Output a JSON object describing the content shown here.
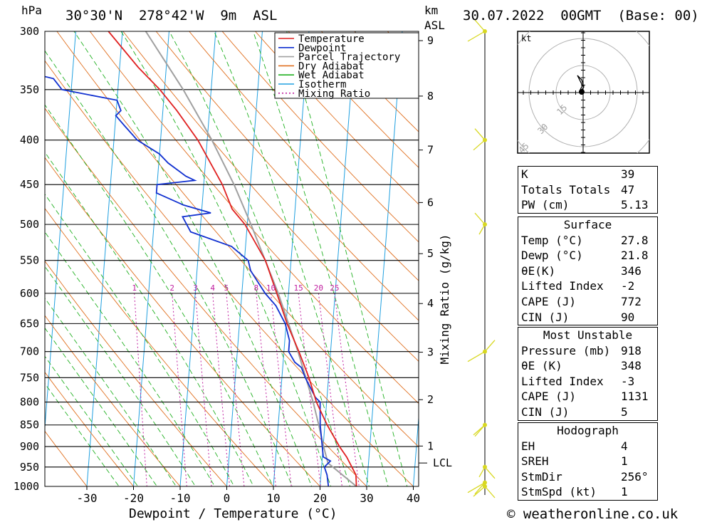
{
  "header": {
    "location": "30°30'N  278°42'W  9m  ASL",
    "datetime": "30.07.2022  00GMT  (Base: 00)",
    "hpa_label": "hPa",
    "km_label": "km",
    "asl_label": "ASL",
    "copyright": "© weatheronline.co.uk"
  },
  "legend": [
    "Temperature",
    "Dewpoint",
    "Parcel Trajectory",
    "Dry Adiabat",
    "Wet Adiabat",
    "Isotherm",
    "Mixing Ratio"
  ],
  "colors": {
    "temperature": "#e02020",
    "dewpoint": "#1030d0",
    "parcel": "#a0a0a0",
    "dry_adiabat": "#e07020",
    "wet_adiabat": "#20b020",
    "isotherm": "#20a0e0",
    "mixing_ratio": "#c020a0",
    "wind": "#d8d820"
  },
  "chart_data": {
    "type": "line",
    "title": "30°30'N  278°42'W  9m  ASL",
    "xlabel": "Dewpoint / Temperature (°C)",
    "ylabel": "hPa",
    "y2label": "Mixing Ratio (g/kg)",
    "xlim": [
      -40,
      40
    ],
    "x_ticks": [
      "-30",
      "-20",
      "-10",
      "0",
      "10",
      "20",
      "30",
      "40"
    ],
    "pressure_levels": [
      "300",
      "350",
      "400",
      "450",
      "500",
      "550",
      "600",
      "650",
      "700",
      "750",
      "800",
      "850",
      "900",
      "950",
      "1000"
    ],
    "km_ticks": [
      "1",
      "2",
      "3",
      "4",
      "5",
      "6",
      "7",
      "8",
      "9"
    ],
    "km_heights": [
      1,
      2,
      3,
      4,
      5,
      6,
      7,
      8,
      9
    ],
    "lcl_label": "LCL",
    "lcl_pressure": 940,
    "mixing_ratio_labels": [
      "1",
      "2",
      "3",
      "4",
      "5",
      "8",
      "10",
      "15",
      "20",
      "25"
    ],
    "mixing_ratio_values": [
      1,
      2,
      3,
      4,
      5,
      8,
      10,
      15,
      20,
      25
    ],
    "series": [
      {
        "name": "Temperature",
        "points": [
          [
            1000,
            27.8
          ],
          [
            970,
            27.5
          ],
          [
            950,
            26.5
          ],
          [
            925,
            25.2
          ],
          [
            900,
            23.5
          ],
          [
            850,
            20.5
          ],
          [
            800,
            17.8
          ],
          [
            750,
            15.8
          ],
          [
            700,
            13.2
          ],
          [
            650,
            10.2
          ],
          [
            600,
            7.5
          ],
          [
            550,
            4.5
          ],
          [
            500,
            -0.5
          ],
          [
            480,
            -3.5
          ],
          [
            450,
            -6
          ],
          [
            400,
            -12
          ],
          [
            370,
            -17
          ],
          [
            350,
            -21
          ],
          [
            330,
            -26
          ],
          [
            300,
            -33
          ]
        ]
      },
      {
        "name": "Dewpoint",
        "points": [
          [
            1000,
            21.8
          ],
          [
            970,
            21.3
          ],
          [
            950,
            20.6
          ],
          [
            935,
            21.8
          ],
          [
            925,
            20.2
          ],
          [
            900,
            19.8
          ],
          [
            850,
            19
          ],
          [
            800,
            18.6
          ],
          [
            790,
            17.5
          ],
          [
            750,
            15
          ],
          [
            730,
            14
          ],
          [
            720,
            12.5
          ],
          [
            700,
            11
          ],
          [
            680,
            11
          ],
          [
            650,
            9.8
          ],
          [
            620,
            7.5
          ],
          [
            600,
            5
          ],
          [
            580,
            3
          ],
          [
            565,
            1.5
          ],
          [
            550,
            0.8
          ],
          [
            530,
            -3
          ],
          [
            510,
            -12
          ],
          [
            490,
            -14
          ],
          [
            485,
            -8
          ],
          [
            475,
            -14
          ],
          [
            460,
            -20
          ],
          [
            450,
            -20
          ],
          [
            445,
            -12
          ],
          [
            440,
            -14
          ],
          [
            425,
            -18
          ],
          [
            415,
            -20
          ],
          [
            400,
            -25
          ],
          [
            385,
            -28
          ],
          [
            375,
            -30
          ],
          [
            370,
            -29
          ],
          [
            360,
            -30
          ],
          [
            350,
            -42
          ],
          [
            340,
            -44
          ],
          [
            338,
            -46
          ],
          [
            330,
            -50
          ],
          [
            310,
            -54
          ],
          [
            300,
            -57
          ]
        ]
      },
      {
        "name": "Parcel Trajectory",
        "points": [
          [
            1000,
            27.8
          ],
          [
            940,
            21.3
          ],
          [
            900,
            20.1
          ],
          [
            850,
            18.7
          ],
          [
            800,
            17.1
          ],
          [
            700,
            13
          ],
          [
            600,
            7.8
          ],
          [
            500,
            0.8
          ],
          [
            450,
            -3.5
          ],
          [
            400,
            -9
          ],
          [
            350,
            -16
          ],
          [
            300,
            -25
          ]
        ]
      }
    ],
    "hodograph": {
      "unit_label": "kt",
      "ring_labels": [
        "15",
        "30",
        "45"
      ],
      "ring_values": [
        15,
        30,
        45
      ]
    },
    "wind_barb_pressures": [
      300,
      400,
      500,
      700,
      850,
      950,
      990,
      1000
    ]
  },
  "table": {
    "index": [
      {
        "k": "K",
        "v": "39"
      },
      {
        "k": "Totals Totals",
        "v": "47"
      },
      {
        "k": "PW (cm)",
        "v": "5.13"
      }
    ],
    "surface_title": "Surface",
    "surface": [
      {
        "k": "Temp (°C)",
        "v": "27.8"
      },
      {
        "k": "Dewp (°C)",
        "v": "21.8"
      },
      {
        "k": "θE(K)",
        "v": "346"
      },
      {
        "k": "Lifted Index",
        "v": "-2"
      },
      {
        "k": "CAPE (J)",
        "v": "772"
      },
      {
        "k": "CIN (J)",
        "v": "90"
      }
    ],
    "most_unstable_title": "Most Unstable",
    "most_unstable": [
      {
        "k": "Pressure (mb)",
        "v": "918"
      },
      {
        "k": "θE (K)",
        "v": "348"
      },
      {
        "k": "Lifted Index",
        "v": "-3"
      },
      {
        "k": "CAPE (J)",
        "v": "1131"
      },
      {
        "k": "CIN (J)",
        "v": "5"
      }
    ],
    "hodograph_title": "Hodograph",
    "hodograph": [
      {
        "k": "EH",
        "v": "4"
      },
      {
        "k": "SREH",
        "v": "1"
      },
      {
        "k": "StmDir",
        "v": "256°"
      },
      {
        "k": "StmSpd (kt)",
        "v": "1"
      }
    ]
  }
}
